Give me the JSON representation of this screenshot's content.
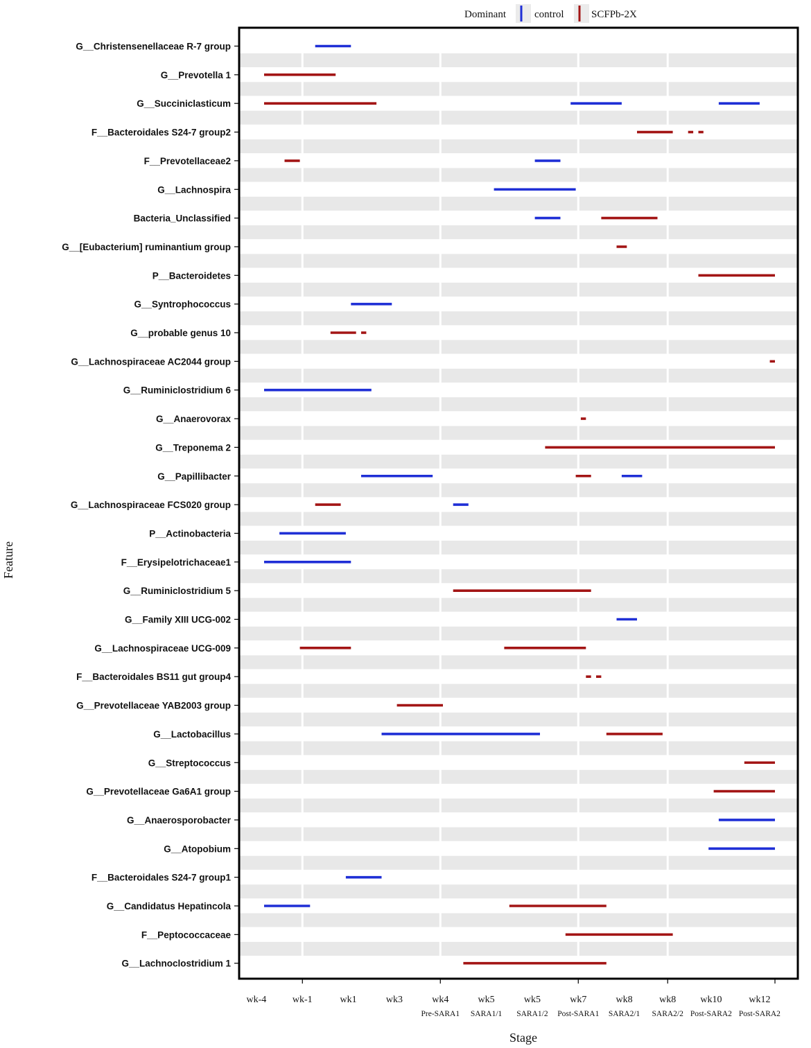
{
  "chart_data": {
    "type": "timeline",
    "xlabel": "Stage",
    "ylabel": "Feature",
    "legend": {
      "title": "Dominant",
      "placement": "top-center",
      "items": [
        {
          "name": "control",
          "color": "#1f2fd6"
        },
        {
          "name": "SCFPb-2X",
          "color": "#a31515"
        }
      ]
    },
    "x_range": [
      0,
      21.2
    ],
    "x_ticks": [
      {
        "value": 0.7,
        "week": "wk-4",
        "phase": ""
      },
      {
        "value": 2.5,
        "week": "wk-1",
        "phase": ""
      },
      {
        "value": 4.3,
        "week": "wk1",
        "phase": ""
      },
      {
        "value": 6.1,
        "week": "wk3",
        "phase": ""
      },
      {
        "value": 7.9,
        "week": "wk4",
        "phase": "Pre-SARA1"
      },
      {
        "value": 9.7,
        "week": "wk5",
        "phase": "SARA1/1"
      },
      {
        "value": 11.5,
        "week": "wk5",
        "phase": "SARA1/2"
      },
      {
        "value": 13.3,
        "week": "wk7",
        "phase": "Post-SARA1"
      },
      {
        "value": 15.1,
        "week": "wk8",
        "phase": "SARA2/1"
      },
      {
        "value": 16.8,
        "week": "wk8",
        "phase": "SARA2/2"
      },
      {
        "value": 18.5,
        "week": "wk10",
        "phase": "Post-SARA2"
      },
      {
        "value": 20.4,
        "week": "wk12",
        "phase": "Post-SARA2"
      }
    ],
    "features": [
      {
        "name": "G__Christensenellaceae R-7 group",
        "segments": [
          {
            "group": "control",
            "start": 3.0,
            "end": 4.4
          }
        ]
      },
      {
        "name": "G__Prevotella 1",
        "segments": [
          {
            "group": "SCFPb-2X",
            "start": 1.0,
            "end": 3.8
          }
        ]
      },
      {
        "name": "G__Succiniclasticum",
        "segments": [
          {
            "group": "SCFPb-2X",
            "start": 1.0,
            "end": 5.4
          },
          {
            "group": "control",
            "start": 13.0,
            "end": 15.0
          },
          {
            "group": "control",
            "start": 18.8,
            "end": 20.4
          }
        ]
      },
      {
        "name": "F__Bacteroidales S24-7 group2",
        "segments": [
          {
            "group": "SCFPb-2X",
            "start": 15.6,
            "end": 17.0
          },
          {
            "group": "SCFPb-2X",
            "start": 17.6,
            "end": 17.8
          },
          {
            "group": "SCFPb-2X",
            "start": 18.0,
            "end": 18.2
          }
        ]
      },
      {
        "name": "F__Prevotellaceae2",
        "segments": [
          {
            "group": "SCFPb-2X",
            "start": 1.8,
            "end": 2.4
          },
          {
            "group": "control",
            "start": 11.6,
            "end": 12.6
          }
        ]
      },
      {
        "name": "G__Lachnospira",
        "segments": [
          {
            "group": "control",
            "start": 10.0,
            "end": 13.2
          }
        ]
      },
      {
        "name": "Bacteria_Unclassified",
        "segments": [
          {
            "group": "control",
            "start": 11.6,
            "end": 12.6
          },
          {
            "group": "SCFPb-2X",
            "start": 14.2,
            "end": 16.4
          }
        ]
      },
      {
        "name": "G__[Eubacterium] ruminantium group",
        "segments": [
          {
            "group": "SCFPb-2X",
            "start": 14.8,
            "end": 15.2
          }
        ]
      },
      {
        "name": "P__Bacteroidetes",
        "segments": [
          {
            "group": "SCFPb-2X",
            "start": 18.0,
            "end": 21.0
          }
        ]
      },
      {
        "name": "G__Syntrophococcus",
        "segments": [
          {
            "group": "control",
            "start": 4.4,
            "end": 6.0
          }
        ]
      },
      {
        "name": "G__probable genus 10",
        "segments": [
          {
            "group": "SCFPb-2X",
            "start": 3.6,
            "end": 4.6
          },
          {
            "group": "SCFPb-2X",
            "start": 4.8,
            "end": 5.0
          }
        ]
      },
      {
        "name": "G__Lachnospiraceae AC2044 group",
        "segments": [
          {
            "group": "SCFPb-2X",
            "start": 20.8,
            "end": 21.0
          }
        ]
      },
      {
        "name": "G__Ruminiclostridium 6",
        "segments": [
          {
            "group": "control",
            "start": 1.0,
            "end": 5.2
          }
        ]
      },
      {
        "name": "G__Anaerovorax",
        "segments": [
          {
            "group": "SCFPb-2X",
            "start": 13.4,
            "end": 13.6
          }
        ]
      },
      {
        "name": "G__Treponema 2",
        "segments": [
          {
            "group": "SCFPb-2X",
            "start": 12.0,
            "end": 21.0
          }
        ]
      },
      {
        "name": "G__Papillibacter",
        "segments": [
          {
            "group": "control",
            "start": 4.8,
            "end": 7.6
          },
          {
            "group": "SCFPb-2X",
            "start": 13.2,
            "end": 13.8
          },
          {
            "group": "control",
            "start": 15.0,
            "end": 15.8
          }
        ]
      },
      {
        "name": "G__Lachnospiraceae FCS020 group",
        "segments": [
          {
            "group": "SCFPb-2X",
            "start": 3.0,
            "end": 4.0
          },
          {
            "group": "control",
            "start": 8.4,
            "end": 9.0
          }
        ]
      },
      {
        "name": "P__Actinobacteria",
        "segments": [
          {
            "group": "control",
            "start": 1.6,
            "end": 4.2
          }
        ]
      },
      {
        "name": "F__Erysipelotrichaceae1",
        "segments": [
          {
            "group": "control",
            "start": 1.0,
            "end": 4.4
          }
        ]
      },
      {
        "name": "G__Ruminiclostridium 5",
        "segments": [
          {
            "group": "SCFPb-2X",
            "start": 8.4,
            "end": 13.8
          }
        ]
      },
      {
        "name": "G__Family XIII UCG-002",
        "segments": [
          {
            "group": "control",
            "start": 14.8,
            "end": 15.6
          }
        ]
      },
      {
        "name": "G__Lachnospiraceae UCG-009",
        "segments": [
          {
            "group": "SCFPb-2X",
            "start": 2.4,
            "end": 4.4
          },
          {
            "group": "SCFPb-2X",
            "start": 10.4,
            "end": 13.6
          }
        ]
      },
      {
        "name": "F__Bacteroidales BS11 gut group4",
        "segments": [
          {
            "group": "SCFPb-2X",
            "start": 13.6,
            "end": 13.8
          },
          {
            "group": "SCFPb-2X",
            "start": 14.0,
            "end": 14.2
          }
        ]
      },
      {
        "name": "G__Prevotellaceae YAB2003 group",
        "segments": [
          {
            "group": "SCFPb-2X",
            "start": 6.2,
            "end": 8.0
          }
        ]
      },
      {
        "name": "G__Lactobacillus",
        "segments": [
          {
            "group": "control",
            "start": 5.6,
            "end": 11.8
          },
          {
            "group": "SCFPb-2X",
            "start": 14.4,
            "end": 16.6
          }
        ]
      },
      {
        "name": "G__Streptococcus",
        "segments": [
          {
            "group": "SCFPb-2X",
            "start": 19.8,
            "end": 21.0
          }
        ]
      },
      {
        "name": "G__Prevotellaceae Ga6A1 group",
        "segments": [
          {
            "group": "SCFPb-2X",
            "start": 18.6,
            "end": 21.0
          }
        ]
      },
      {
        "name": "G__Anaerosporobacter",
        "segments": [
          {
            "group": "control",
            "start": 18.8,
            "end": 21.0
          }
        ]
      },
      {
        "name": "G__Atopobium",
        "segments": [
          {
            "group": "control",
            "start": 18.4,
            "end": 21.0
          }
        ]
      },
      {
        "name": "F__Bacteroidales S24-7 group1",
        "segments": [
          {
            "group": "control",
            "start": 4.2,
            "end": 5.6
          }
        ]
      },
      {
        "name": "G__Candidatus Hepatincola",
        "segments": [
          {
            "group": "control",
            "start": 1.0,
            "end": 2.8
          },
          {
            "group": "SCFPb-2X",
            "start": 10.6,
            "end": 14.4
          }
        ]
      },
      {
        "name": "F__Peptococcaceae",
        "segments": [
          {
            "group": "SCFPb-2X",
            "start": 12.8,
            "end": 17.0
          }
        ]
      },
      {
        "name": "G__Lachnoclostridium 1",
        "segments": [
          {
            "group": "SCFPb-2X",
            "start": 8.8,
            "end": 14.4
          }
        ]
      }
    ]
  }
}
